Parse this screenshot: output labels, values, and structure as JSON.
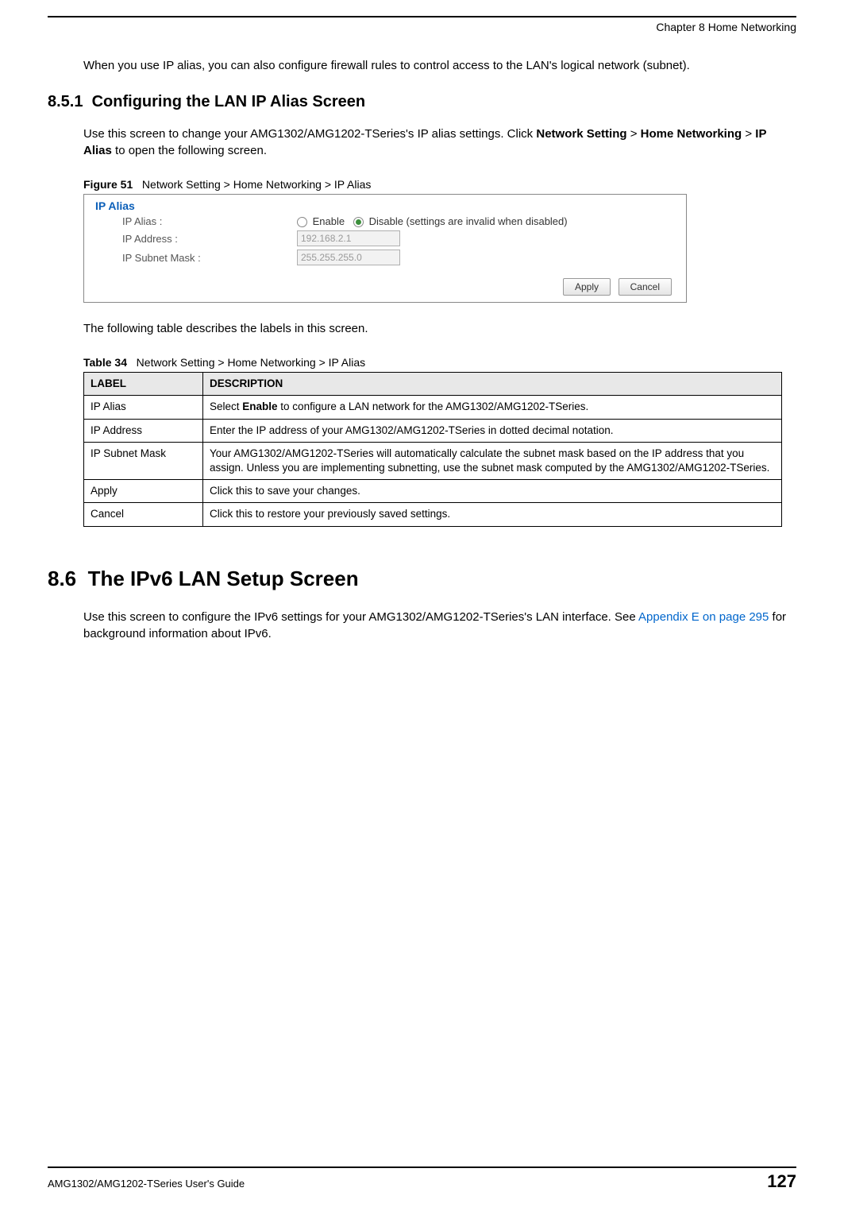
{
  "header": {
    "chapter": "Chapter 8 Home Networking"
  },
  "intro_para": "When you use IP alias, you can also configure firewall rules to control access to the LAN's logical network (subnet).",
  "section_851": {
    "number": "8.5.1",
    "title": "Configuring the LAN IP Alias Screen",
    "para_pre": "Use this screen to change your AMG1302/AMG1202-TSeries's IP alias settings. Click ",
    "bold1": "Network Setting",
    "gt1": " > ",
    "bold2": "Home Networking",
    "gt2": " > ",
    "bold3": "IP Alias",
    "para_post": " to open the following screen."
  },
  "figure": {
    "label": "Figure 51",
    "caption": "Network Setting > Home Networking > IP Alias",
    "panel_title": "IP Alias",
    "rows": {
      "alias_label": "IP Alias :",
      "enable": "Enable",
      "disable": "Disable (settings are invalid when disabled)",
      "addr_label": "IP Address :",
      "addr_value": "192.168.2.1",
      "mask_label": "IP Subnet Mask :",
      "mask_value": "255.255.255.0"
    },
    "buttons": {
      "apply": "Apply",
      "cancel": "Cancel"
    }
  },
  "table_intro": "The following table describes the labels in this screen.",
  "table": {
    "label": "Table 34",
    "caption": "Network Setting > Home Networking > IP Alias",
    "headers": {
      "c0": "LABEL",
      "c1": "DESCRIPTION"
    },
    "rows": [
      {
        "label": "IP Alias",
        "desc_pre": "Select ",
        "desc_bold": "Enable",
        "desc_post": " to configure a LAN network for the AMG1302/AMG1202-TSeries."
      },
      {
        "label": "IP Address",
        "desc": "Enter the IP address of your AMG1302/AMG1202-TSeries in dotted decimal notation."
      },
      {
        "label": "IP Subnet Mask",
        "desc": "Your AMG1302/AMG1202-TSeries will automatically calculate the subnet mask based on the IP address that you assign. Unless you are implementing subnetting, use the subnet mask computed by the AMG1302/AMG1202-TSeries."
      },
      {
        "label": "Apply",
        "desc": "Click this to save your changes."
      },
      {
        "label": "Cancel",
        "desc": "Click this to restore your previously saved settings."
      }
    ]
  },
  "section_86": {
    "number": "8.6",
    "title": "The IPv6 LAN Setup Screen",
    "para_pre": "Use this screen to configure the IPv6 settings for your AMG1302/AMG1202-TSeries's LAN interface. See ",
    "link": "Appendix E on page 295",
    "para_post": " for background information about IPv6."
  },
  "footer": {
    "guide": "AMG1302/AMG1202-TSeries User's Guide",
    "page": "127"
  }
}
